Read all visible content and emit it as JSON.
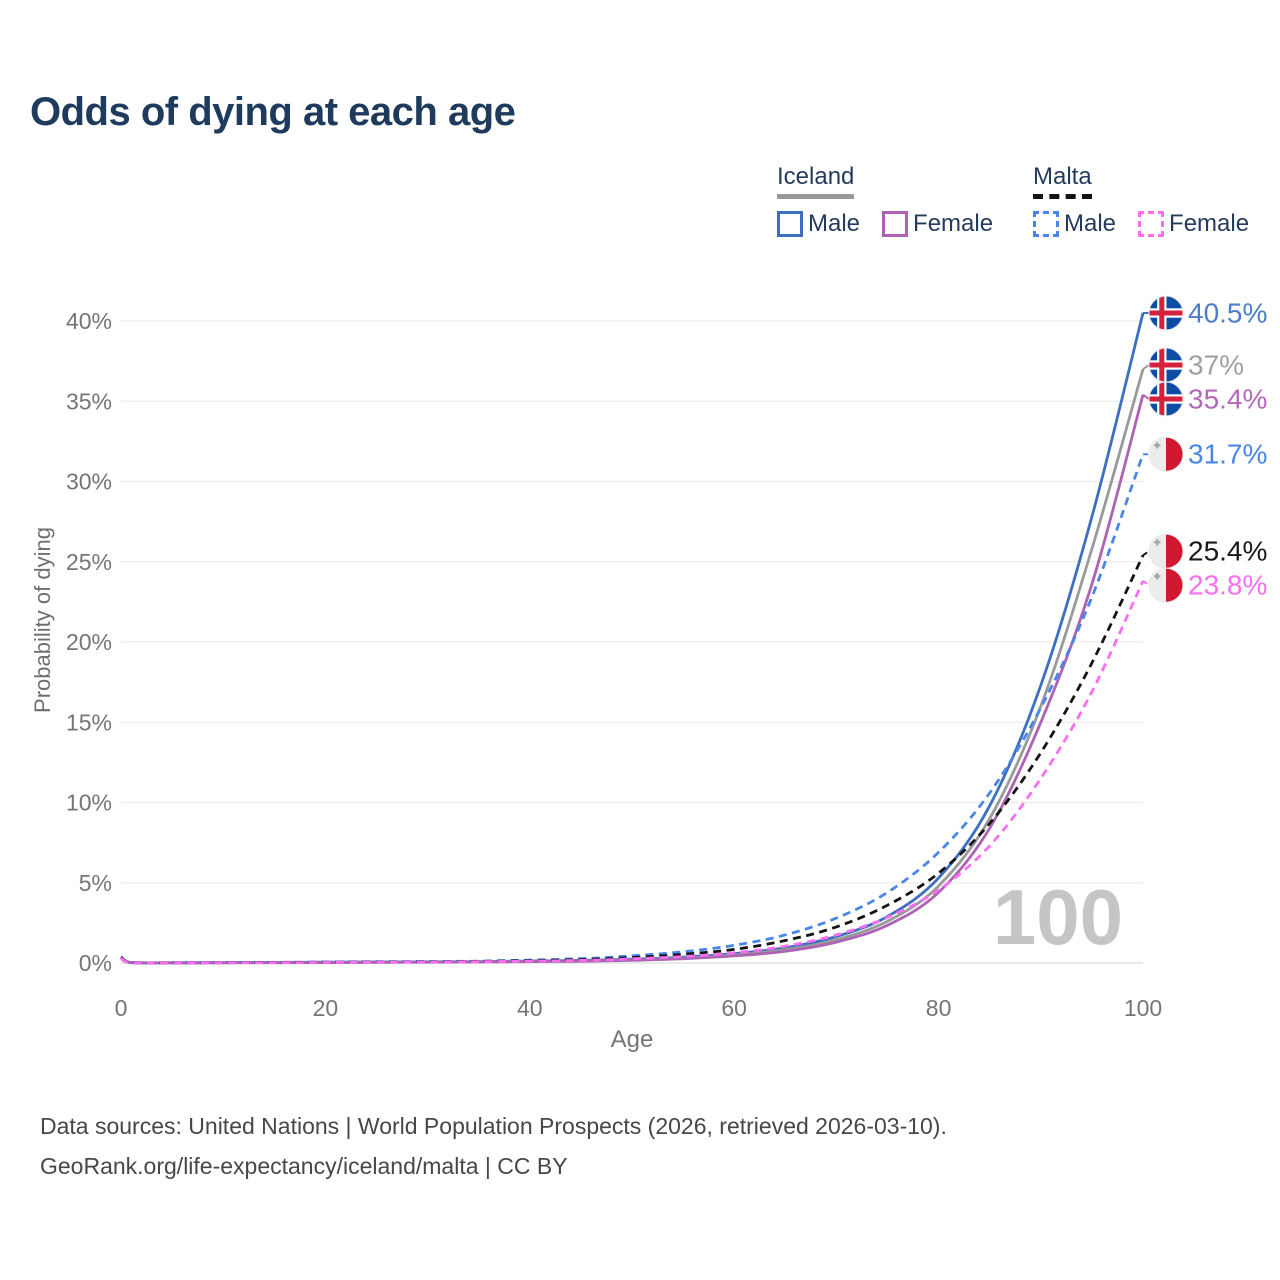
{
  "title": "Odds of dying at each age",
  "legend": {
    "groups": [
      {
        "label": "Iceland",
        "line_style": "solid",
        "underline_color": "#999999",
        "items": [
          {
            "label": "Male",
            "color": "#3d6fc0"
          },
          {
            "label": "Female",
            "color": "#ad63b4"
          }
        ]
      },
      {
        "label": "Malta",
        "line_style": "dashed",
        "underline_color": "#141414",
        "items": [
          {
            "label": "Male",
            "color": "#4a86e8"
          },
          {
            "label": "Female",
            "color": "#fb6ef1"
          }
        ]
      }
    ]
  },
  "watermark": "100",
  "footer": {
    "line1": "Data sources: United Nations | World Population Prospects (2026, retrieved 2026-03-10).",
    "line2": "GeoRank.org/life-expectancy/iceland/malta | CC BY"
  },
  "chart_data": {
    "type": "line",
    "title": "Odds of dying at each age",
    "xlabel": "Age",
    "ylabel": "Probability of dying",
    "xlim": [
      0,
      100
    ],
    "ylim": [
      0,
      42
    ],
    "xticks": [
      0,
      20,
      40,
      60,
      80,
      100
    ],
    "yticks": [
      0,
      5,
      10,
      15,
      20,
      25,
      30,
      35,
      40
    ],
    "ytick_suffix": "%",
    "grid": "horizontal",
    "legend_position": "top-right",
    "hover_age_watermark": "100",
    "x": [
      0,
      1,
      5,
      15,
      25,
      35,
      45,
      50,
      55,
      60,
      65,
      70,
      75,
      80,
      85,
      90,
      95,
      100
    ],
    "series": [
      {
        "name": "Iceland Male",
        "country": "Iceland",
        "sex": "Male",
        "color": "#3d6fc0",
        "label_color": "#4b7ecb",
        "dash": "solid",
        "flag": "iceland",
        "end_label": "40.5%",
        "values": [
          0.35,
          0.03,
          0.01,
          0.04,
          0.07,
          0.09,
          0.16,
          0.24,
          0.37,
          0.58,
          0.95,
          1.65,
          2.9,
          5.3,
          9.8,
          17.3,
          27.8,
          40.5
        ]
      },
      {
        "name": "Iceland Both sexes",
        "country": "Iceland",
        "sex": "Both",
        "color": "#9a9a9a",
        "label_color": "#a0a0a0",
        "dash": "solid",
        "flag": "iceland",
        "end_label": "37%",
        "values": [
          0.3,
          0.03,
          0.01,
          0.03,
          0.05,
          0.08,
          0.13,
          0.2,
          0.31,
          0.5,
          0.83,
          1.45,
          2.6,
          4.8,
          9.0,
          16.0,
          25.8,
          37.0
        ]
      },
      {
        "name": "Iceland Female",
        "country": "Iceland",
        "sex": "Female",
        "color": "#ad63b4",
        "label_color": "#b468bb",
        "dash": "solid",
        "flag": "iceland",
        "end_label": "35.4%",
        "values": [
          0.28,
          0.02,
          0.01,
          0.02,
          0.04,
          0.06,
          0.11,
          0.17,
          0.27,
          0.44,
          0.73,
          1.3,
          2.35,
          4.4,
          8.4,
          15.0,
          23.6,
          35.4
        ]
      },
      {
        "name": "Malta Male",
        "country": "Malta",
        "sex": "Male",
        "color": "#4a86e8",
        "label_color": "#4a86e8",
        "dash": "dashed",
        "flag": "malta",
        "end_label": "31.7%",
        "values": [
          0.4,
          0.03,
          0.01,
          0.04,
          0.08,
          0.12,
          0.27,
          0.45,
          0.7,
          1.1,
          1.75,
          2.8,
          4.4,
          6.9,
          10.6,
          15.9,
          22.8,
          31.7
        ]
      },
      {
        "name": "Malta Both sexes",
        "country": "Malta",
        "sex": "Both",
        "color": "#141414",
        "label_color": "#1a1a1a",
        "dash": "dashed",
        "flag": "malta",
        "end_label": "25.4%",
        "values": [
          0.35,
          0.03,
          0.01,
          0.03,
          0.06,
          0.1,
          0.21,
          0.34,
          0.54,
          0.85,
          1.4,
          2.25,
          3.6,
          5.6,
          8.7,
          13.1,
          18.7,
          25.4
        ]
      },
      {
        "name": "Malta Female",
        "country": "Malta",
        "sex": "Female",
        "color": "#fb6ef1",
        "label_color": "#fb6ef1",
        "dash": "dashed",
        "flag": "malta",
        "end_label": "23.8%",
        "values": [
          0.3,
          0.02,
          0.01,
          0.02,
          0.05,
          0.08,
          0.16,
          0.26,
          0.4,
          0.64,
          1.05,
          1.75,
          2.85,
          4.55,
          7.3,
          11.5,
          16.9,
          23.8
        ]
      }
    ],
    "flag_colors": {
      "iceland_blue": "#0d4da5",
      "iceland_red": "#d6213e",
      "malta_white": "#ececec",
      "malta_red": "#d01931",
      "malta_cross_gray": "#a3a3a3"
    }
  }
}
